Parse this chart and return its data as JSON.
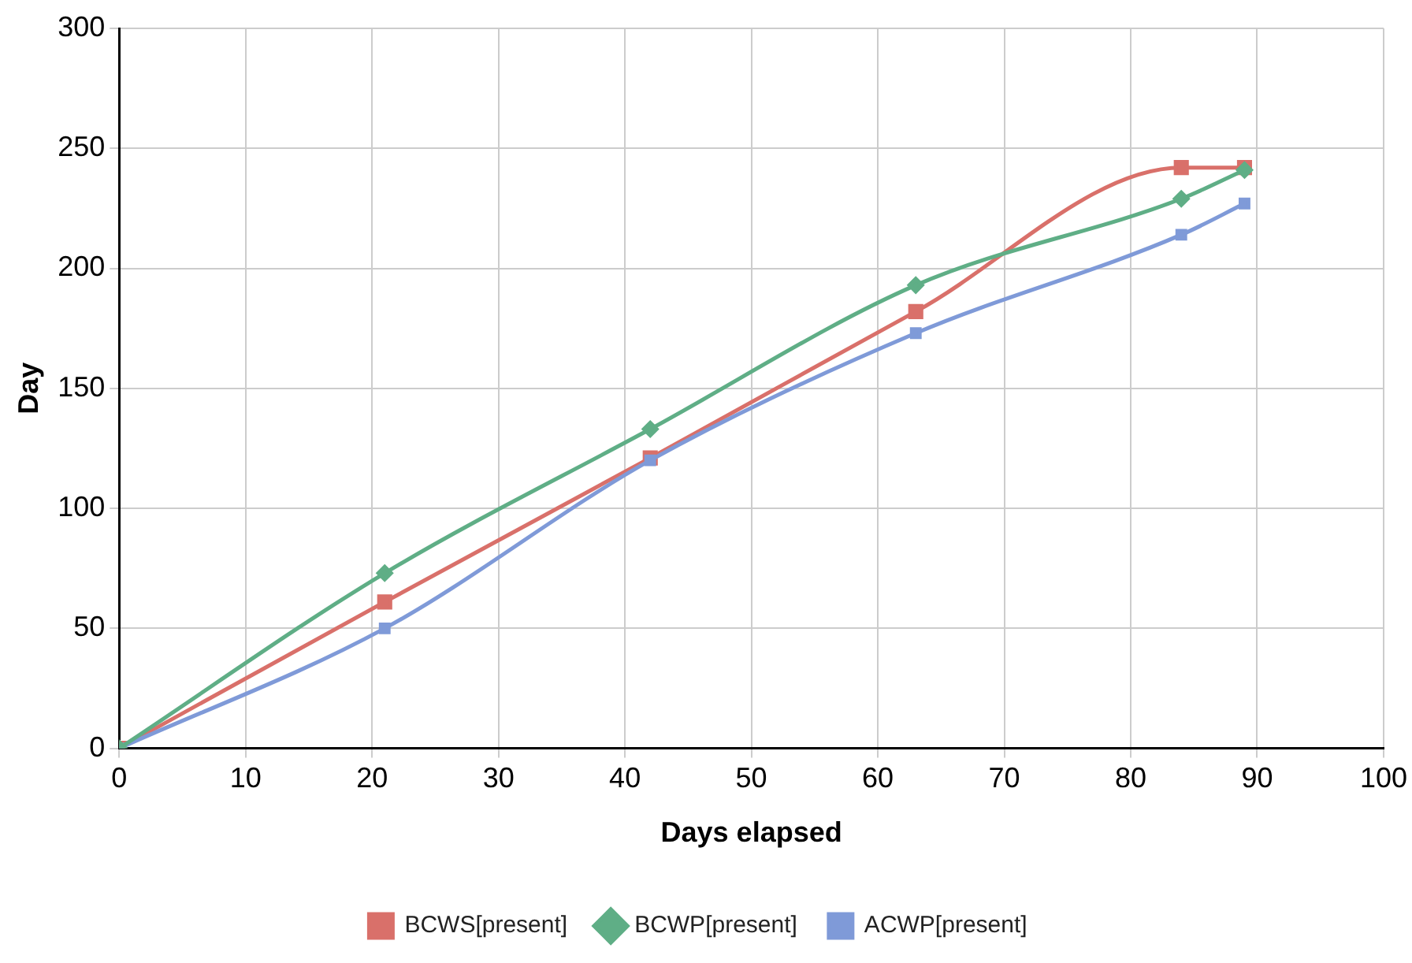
{
  "chart_data": {
    "type": "line",
    "xlabel": "Days elapsed",
    "ylabel": "Day",
    "xlim": [
      0,
      100
    ],
    "xticks": [
      0,
      10,
      20,
      30,
      40,
      50,
      60,
      70,
      80,
      90,
      100
    ],
    "ylim": [
      0,
      300
    ],
    "yticks": [
      0,
      50,
      100,
      150,
      200,
      250,
      300
    ],
    "grid": true,
    "legend": "bottom",
    "line_style": "solid",
    "series": [
      {
        "name": "BCWS[present]",
        "color": "#d9706a",
        "marker": "square",
        "x": [
          0,
          21,
          42,
          63,
          84,
          89
        ],
        "values": [
          0,
          61,
          121,
          182,
          242,
          242
        ]
      },
      {
        "name": "BCWP[present]",
        "color": "#5fae86",
        "marker": "diamond",
        "x": [
          0,
          21,
          42,
          63,
          84,
          89
        ],
        "values": [
          0,
          73,
          133,
          193,
          229,
          241
        ]
      },
      {
        "name": "ACWP[present]",
        "color": "#7f9ad8",
        "marker": "square",
        "x": [
          0,
          21,
          42,
          63,
          84,
          89
        ],
        "values": [
          0,
          50,
          120,
          173,
          214,
          227
        ]
      }
    ]
  }
}
